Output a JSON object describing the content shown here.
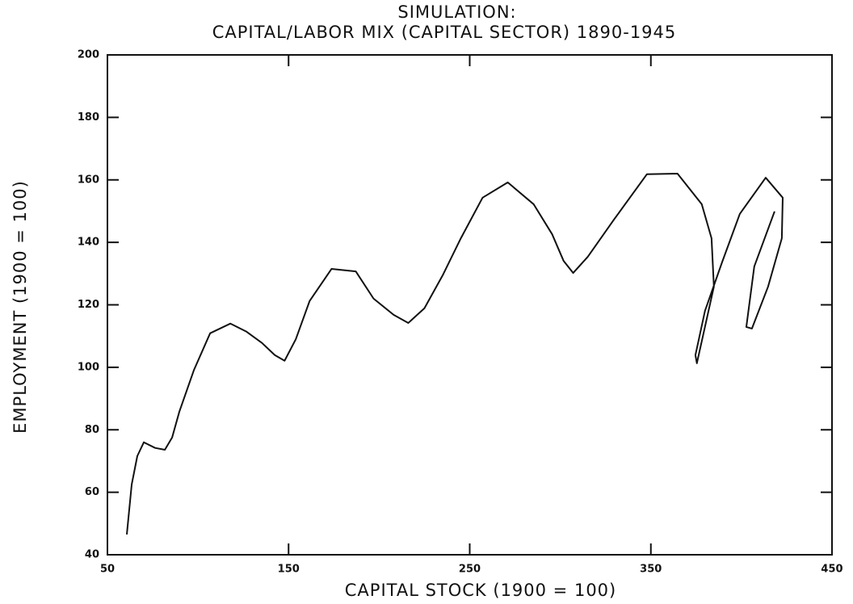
{
  "chart_data": {
    "type": "line",
    "title": "SIMULATION:",
    "subtitle": "CAPITAL/LABOR MIX (CAPITAL SECTOR) 1890-1945",
    "x_label": "CAPITAL STOCK (1900 = 100)",
    "y_label": "EMPLOYMENT (1900 = 100)",
    "xlim": [
      50,
      450
    ],
    "xticks": [
      50,
      150,
      250,
      350,
      450
    ],
    "ylim": [
      40,
      200
    ],
    "yticks": [
      40,
      60,
      80,
      100,
      120,
      140,
      160,
      180,
      200
    ],
    "color": "#111111",
    "x": [
      60.7,
      63.4,
      66.5,
      70.1,
      76.3,
      81.7,
      85.7,
      89.7,
      97.8,
      106.7,
      117.9,
      126.8,
      135.3,
      142.4,
      147.8,
      154.0,
      161.6,
      173.7,
      187.1,
      196.9,
      208.0,
      216.1,
      225.0,
      235.3,
      245.1,
      257.1,
      271.0,
      285.3,
      295.5,
      301.8,
      307.1,
      315.2,
      329.9,
      347.8,
      364.7,
      378.1,
      383.5,
      384.8,
      375.4,
      374.6,
      379.9,
      389.3,
      399.1,
      413.4,
      422.8,
      422.3,
      414.7,
      405.8,
      402.7,
      407.1,
      418.3
    ],
    "values": [
      46.5,
      62.5,
      71.6,
      76.0,
      74.2,
      73.6,
      77.5,
      85.8,
      99.2,
      110.9,
      114.0,
      111.4,
      107.8,
      103.9,
      102.1,
      109.0,
      121.2,
      131.5,
      130.7,
      122.0,
      116.8,
      114.2,
      118.9,
      129.7,
      141.3,
      154.3,
      159.2,
      152.2,
      142.6,
      134.1,
      130.2,
      135.4,
      147.5,
      161.8,
      162.0,
      152.2,
      141.3,
      125.8,
      101.3,
      103.9,
      118.1,
      133.6,
      149.1,
      160.7,
      154.3,
      141.3,
      125.8,
      112.4,
      112.9,
      132.3,
      149.9
    ]
  }
}
